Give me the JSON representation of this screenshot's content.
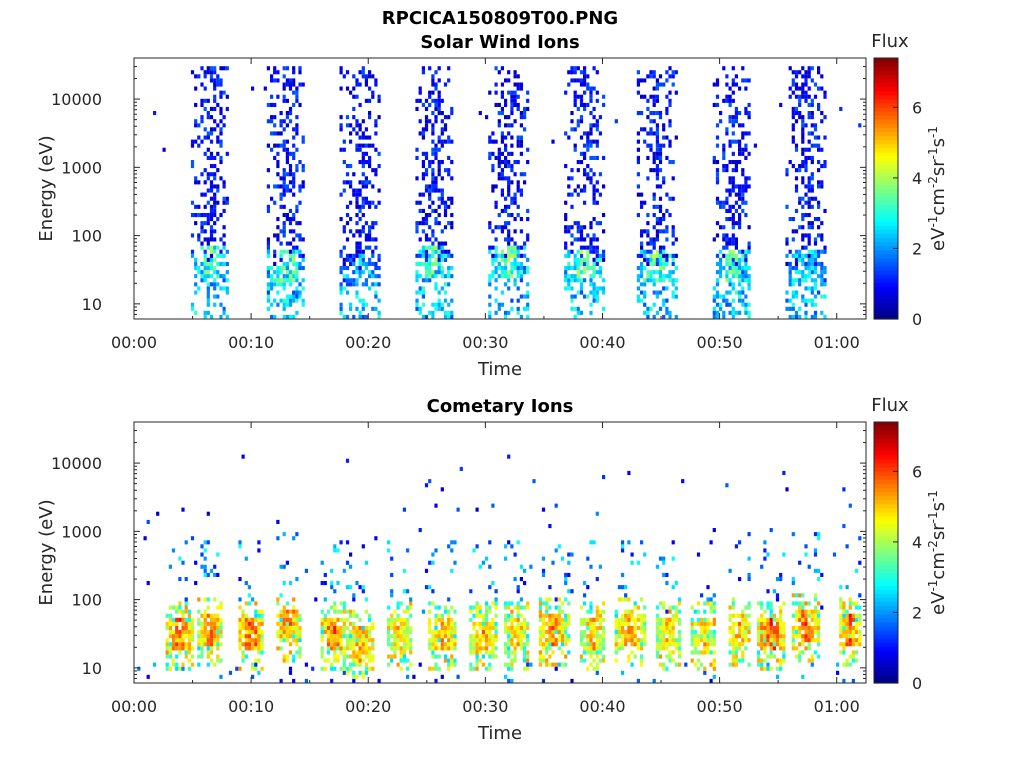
{
  "figure": {
    "filename": "RPCICA150809T00.PNG"
  },
  "chart_data": [
    {
      "type": "heatmap",
      "title": "Solar Wind Ions",
      "xlabel": "Time",
      "ylabel": "Energy (eV)",
      "x_ticks": [
        "00:00",
        "00:10",
        "00:20",
        "00:30",
        "00:40",
        "00:50",
        "01:00"
      ],
      "x_tick_minutes": [
        0,
        10,
        20,
        30,
        40,
        50,
        60
      ],
      "xlim_minutes": [
        0,
        62.5
      ],
      "y_scale": "log",
      "y_ticks": [
        "10",
        "100",
        "1000",
        "10000"
      ],
      "y_tick_values": [
        10,
        100,
        1000,
        10000
      ],
      "ylim": [
        6,
        40000
      ],
      "colorbar": {
        "title": "Flux",
        "label": "eV-1cm-2sr-1s-1",
        "range": [
          0,
          7.4
        ],
        "ticks": [
          "0",
          "2",
          "4",
          "6"
        ],
        "tick_values": [
          0,
          2,
          4,
          6
        ],
        "colormap": "jet"
      },
      "sweeps": [
        {
          "t_start": 4.8,
          "t_end": 8.0,
          "peak_energy_eV": 40,
          "peak_flux": 4.3
        },
        {
          "t_start": 11.2,
          "t_end": 14.5,
          "peak_energy_eV": 35,
          "peak_flux": 4.6
        },
        {
          "t_start": 17.5,
          "t_end": 21.0,
          "peak_energy_eV": 30,
          "peak_flux": 2.8
        },
        {
          "t_start": 23.8,
          "t_end": 27.2,
          "peak_energy_eV": 40,
          "peak_flux": 4.3
        },
        {
          "t_start": 30.2,
          "t_end": 33.6,
          "peak_energy_eV": 40,
          "peak_flux": 4.5
        },
        {
          "t_start": 36.5,
          "t_end": 40.0,
          "peak_energy_eV": 35,
          "peak_flux": 4.6
        },
        {
          "t_start": 42.8,
          "t_end": 46.3,
          "peak_energy_eV": 35,
          "peak_flux": 4.6
        },
        {
          "t_start": 49.2,
          "t_end": 52.6,
          "peak_energy_eV": 35,
          "peak_flux": 4.4
        },
        {
          "t_start": 55.5,
          "t_end": 59.0,
          "peak_energy_eV": 35,
          "peak_flux": 3.5
        }
      ]
    },
    {
      "type": "heatmap",
      "title": "Cometary Ions",
      "xlabel": "Time",
      "ylabel": "Energy (eV)",
      "x_ticks": [
        "00:00",
        "00:10",
        "00:20",
        "00:30",
        "00:40",
        "00:50",
        "01:00"
      ],
      "x_tick_minutes": [
        0,
        10,
        20,
        30,
        40,
        50,
        60
      ],
      "xlim_minutes": [
        0,
        62.5
      ],
      "y_scale": "log",
      "y_ticks": [
        "10",
        "100",
        "1000",
        "10000"
      ],
      "y_tick_values": [
        10,
        100,
        1000,
        10000
      ],
      "ylim": [
        6,
        40000
      ],
      "colorbar": {
        "title": "Flux",
        "label": "eV-1cm-2sr-1s-1",
        "range": [
          0,
          7.4
        ],
        "ticks": [
          "0",
          "2",
          "4",
          "6"
        ],
        "tick_values": [
          0,
          2,
          4,
          6
        ],
        "colormap": "jet"
      },
      "blobs": [
        {
          "t_start": 2.5,
          "t_end": 5.0,
          "peak_energy_eV": 30,
          "peak_flux": 6.5
        },
        {
          "t_start": 5.2,
          "t_end": 7.5,
          "peak_energy_eV": 35,
          "peak_flux": 6.3
        },
        {
          "t_start": 8.8,
          "t_end": 11.0,
          "peak_energy_eV": 30,
          "peak_flux": 6.8
        },
        {
          "t_start": 12.0,
          "t_end": 14.2,
          "peak_energy_eV": 40,
          "peak_flux": 6.5
        },
        {
          "t_start": 15.8,
          "t_end": 18.0,
          "peak_energy_eV": 30,
          "peak_flux": 6.7
        },
        {
          "t_start": 18.0,
          "t_end": 20.5,
          "peak_energy_eV": 22,
          "peak_flux": 6.0
        },
        {
          "t_start": 21.5,
          "t_end": 23.5,
          "peak_energy_eV": 30,
          "peak_flux": 5.8
        },
        {
          "t_start": 25.0,
          "t_end": 27.5,
          "peak_energy_eV": 30,
          "peak_flux": 6.2
        },
        {
          "t_start": 28.5,
          "t_end": 30.8,
          "peak_energy_eV": 28,
          "peak_flux": 6.0
        },
        {
          "t_start": 31.5,
          "t_end": 33.5,
          "peak_energy_eV": 30,
          "peak_flux": 6.0
        },
        {
          "t_start": 34.3,
          "t_end": 37.0,
          "peak_energy_eV": 35,
          "peak_flux": 6.4
        },
        {
          "t_start": 38.0,
          "t_end": 40.0,
          "peak_energy_eV": 30,
          "peak_flux": 6.0
        },
        {
          "t_start": 41.0,
          "t_end": 43.5,
          "peak_energy_eV": 35,
          "peak_flux": 6.2
        },
        {
          "t_start": 44.5,
          "t_end": 46.5,
          "peak_energy_eV": 30,
          "peak_flux": 5.8
        },
        {
          "t_start": 47.5,
          "t_end": 49.5,
          "peak_energy_eV": 28,
          "peak_flux": 5.8
        },
        {
          "t_start": 50.5,
          "t_end": 52.5,
          "peak_energy_eV": 35,
          "peak_flux": 6.0
        },
        {
          "t_start": 53.0,
          "t_end": 55.5,
          "peak_energy_eV": 30,
          "peak_flux": 6.8
        },
        {
          "t_start": 56.0,
          "t_end": 58.5,
          "peak_energy_eV": 40,
          "peak_flux": 6.5
        },
        {
          "t_start": 60.0,
          "t_end": 62.0,
          "peak_energy_eV": 35,
          "peak_flux": 6.6
        }
      ]
    }
  ]
}
